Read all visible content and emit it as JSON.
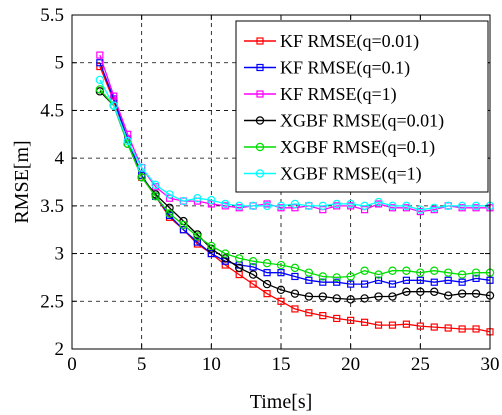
{
  "chart_data": {
    "type": "line",
    "title": "",
    "xlabel": "Time[s]",
    "ylabel": "RMSE[m]",
    "xlim": [
      0,
      30
    ],
    "ylim": [
      2,
      5.5
    ],
    "xticks": [
      0,
      5,
      10,
      15,
      20,
      25,
      30
    ],
    "yticks": [
      2,
      2.5,
      3,
      3.5,
      4,
      4.5,
      5,
      5.5
    ],
    "xtick_labels": [
      "0",
      "5",
      "10",
      "15",
      "20",
      "25",
      "30"
    ],
    "ytick_labels": [
      "2",
      "2.5",
      "3",
      "3.5",
      "4",
      "4.5",
      "5",
      "5.5"
    ],
    "grid": true,
    "grid_style": "dashed",
    "legend_position": "top-right",
    "x": [
      2,
      3,
      4,
      5,
      6,
      7,
      8,
      9,
      10,
      11,
      12,
      13,
      14,
      15,
      16,
      17,
      18,
      19,
      20,
      21,
      22,
      23,
      24,
      25,
      26,
      27,
      28,
      29,
      30
    ],
    "series": [
      {
        "name": "KF RMSE(q=0.01)",
        "color": "#ff0000",
        "marker": "square",
        "values": [
          4.96,
          4.6,
          4.2,
          3.8,
          3.6,
          3.38,
          3.25,
          3.1,
          3.0,
          2.88,
          2.78,
          2.68,
          2.58,
          2.5,
          2.42,
          2.38,
          2.35,
          2.32,
          2.3,
          2.28,
          2.25,
          2.25,
          2.26,
          2.24,
          2.23,
          2.22,
          2.21,
          2.21,
          2.18
        ]
      },
      {
        "name": "KF RMSE(q=0.1)",
        "color": "#0000ff",
        "marker": "square",
        "values": [
          5.0,
          4.62,
          4.2,
          3.82,
          3.6,
          3.4,
          3.25,
          3.12,
          3.0,
          2.92,
          2.88,
          2.86,
          2.8,
          2.8,
          2.76,
          2.72,
          2.7,
          2.7,
          2.68,
          2.68,
          2.72,
          2.68,
          2.72,
          2.72,
          2.7,
          2.72,
          2.7,
          2.74,
          2.72
        ]
      },
      {
        "name": "KF RMSE(q=1)",
        "color": "#ff00ff",
        "marker": "square",
        "values": [
          5.08,
          4.65,
          4.25,
          3.9,
          3.7,
          3.58,
          3.55,
          3.55,
          3.52,
          3.5,
          3.48,
          3.5,
          3.52,
          3.48,
          3.48,
          3.5,
          3.46,
          3.5,
          3.5,
          3.46,
          3.52,
          3.48,
          3.48,
          3.44,
          3.46,
          3.5,
          3.48,
          3.48,
          3.48
        ]
      },
      {
        "name": "XGBF RMSE(q=0.01)",
        "color": "#000000",
        "marker": "circle",
        "values": [
          4.7,
          4.55,
          4.15,
          3.8,
          3.62,
          3.48,
          3.34,
          3.2,
          3.05,
          2.95,
          2.85,
          2.78,
          2.68,
          2.62,
          2.58,
          2.55,
          2.55,
          2.53,
          2.52,
          2.53,
          2.55,
          2.55,
          2.6,
          2.6,
          2.6,
          2.56,
          2.58,
          2.58,
          2.56
        ]
      },
      {
        "name": "XGBF RMSE(q=0.1)",
        "color": "#00dd00",
        "marker": "circle",
        "values": [
          4.72,
          4.55,
          4.15,
          3.8,
          3.6,
          3.42,
          3.3,
          3.18,
          3.08,
          3.0,
          2.95,
          2.92,
          2.9,
          2.88,
          2.85,
          2.8,
          2.76,
          2.75,
          2.76,
          2.82,
          2.78,
          2.82,
          2.82,
          2.8,
          2.82,
          2.8,
          2.78,
          2.8,
          2.8
        ]
      },
      {
        "name": "XGBF RMSE(q=1)",
        "color": "#00ffff",
        "marker": "circle",
        "values": [
          4.82,
          4.55,
          4.18,
          3.9,
          3.72,
          3.62,
          3.55,
          3.58,
          3.56,
          3.52,
          3.5,
          3.5,
          3.5,
          3.5,
          3.52,
          3.5,
          3.5,
          3.52,
          3.52,
          3.5,
          3.54,
          3.5,
          3.5,
          3.46,
          3.48,
          3.5,
          3.5,
          3.5,
          3.5
        ]
      }
    ]
  }
}
